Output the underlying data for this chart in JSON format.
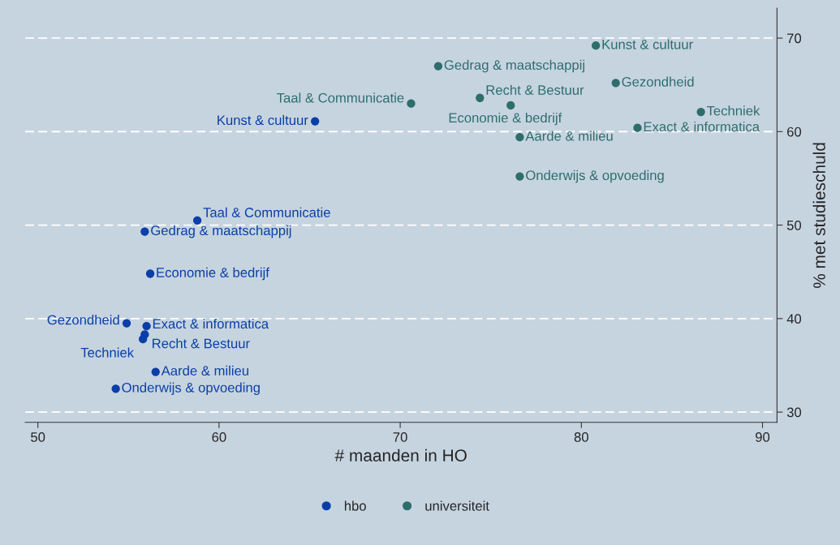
{
  "chart_data": {
    "type": "scatter",
    "xlabel": "# maanden in HO",
    "ylabel": "% met studieschuld",
    "xlim": [
      49.3,
      90.8
    ],
    "ylim": [
      28.9,
      73.2
    ],
    "xticks": [
      50,
      60,
      70,
      80,
      90
    ],
    "yticks": [
      30,
      40,
      50,
      60,
      70
    ],
    "grid": "y",
    "legend": "bottom",
    "marker": "circle",
    "series": [
      {
        "name": "hbo",
        "color": "#0a3fa8",
        "x": [
          65.3,
          58.8,
          55.9,
          56.2,
          54.9,
          56.0,
          55.9,
          55.8,
          56.5,
          54.3
        ],
        "values": [
          61.1,
          50.5,
          49.3,
          44.8,
          39.5,
          39.2,
          38.3,
          37.8,
          34.3,
          32.5
        ]
      },
      {
        "name": "universiteit",
        "color": "#2e6e6a",
        "x": [
          80.8,
          72.1,
          81.9,
          70.6,
          74.4,
          76.1,
          86.6,
          83.1,
          76.6,
          76.6
        ],
        "values": [
          69.2,
          67.0,
          65.2,
          63.0,
          63.6,
          62.8,
          62.1,
          60.4,
          59.4,
          55.2
        ]
      }
    ],
    "annotations": [
      {
        "text": "Kunst & cultuur",
        "x": 65.3,
        "y": 61.1
      },
      {
        "text": "Taal & Communicatie",
        "x": 58.8,
        "y": 50.5
      },
      {
        "text": "Gedrag & maatschappij",
        "x": 55.9,
        "y": 49.3
      },
      {
        "text": "Economie & bedrijf",
        "x": 56.2,
        "y": 44.8
      },
      {
        "text": "Gezondheid",
        "x": 54.9,
        "y": 39.5
      },
      {
        "text": "Exact & informatica",
        "x": 56.0,
        "y": 39.2
      },
      {
        "text": "Recht & Bestuur",
        "x": 55.9,
        "y": 38.3
      },
      {
        "text": "Techniek",
        "x": 55.8,
        "y": 37.8
      },
      {
        "text": "Aarde & milieu",
        "x": 56.5,
        "y": 34.3
      },
      {
        "text": "Onderwijs & opvoeding",
        "x": 54.3,
        "y": 32.5
      },
      {
        "text": "Kunst & cultuur",
        "x": 80.8,
        "y": 69.2
      },
      {
        "text": "Gedrag & maatschappij",
        "x": 72.1,
        "y": 67.0
      },
      {
        "text": "Gezondheid",
        "x": 81.9,
        "y": 65.2
      },
      {
        "text": "Taal & Communicatie",
        "x": 70.6,
        "y": 63.0
      },
      {
        "text": "Recht & Bestuur",
        "x": 74.4,
        "y": 63.6
      },
      {
        "text": "Economie & bedrijf",
        "x": 76.1,
        "y": 62.8
      },
      {
        "text": "Techniek",
        "x": 86.6,
        "y": 62.1
      },
      {
        "text": "Exact & informatica",
        "x": 83.1,
        "y": 60.4
      },
      {
        "text": "Aarde & milieu",
        "x": 76.6,
        "y": 59.4
      },
      {
        "text": "Onderwijs & opvoeding",
        "x": 76.6,
        "y": 55.2
      }
    ]
  }
}
